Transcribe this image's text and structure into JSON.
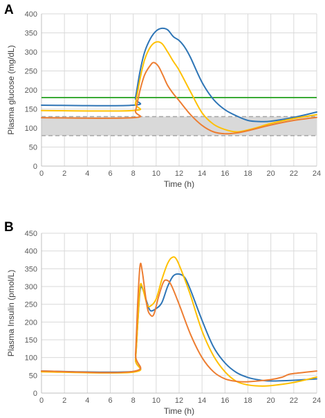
{
  "colors": {
    "blue": "#2e75b6",
    "orange": "#ed7d31",
    "yellow": "#ffc000",
    "green": "#3aaa35",
    "band": "#d9d9d9",
    "band_line": "#a6a6a6",
    "grid": "#d9d9d9"
  },
  "chart_data": [
    {
      "type": "line",
      "panel_label": "A",
      "xlabel": "Time (h)",
      "ylabel": "Plasma glucose (mg/dL)",
      "xlim": [
        0,
        24
      ],
      "ylim": [
        0,
        400
      ],
      "xticks": [
        0,
        2,
        4,
        6,
        8,
        10,
        12,
        14,
        16,
        18,
        20,
        22,
        24
      ],
      "yticks": [
        0,
        50,
        100,
        150,
        200,
        250,
        300,
        350,
        400
      ],
      "grid": true,
      "band": {
        "low": 80,
        "high": 130
      },
      "hlines": [
        {
          "y": 180,
          "color": "green"
        }
      ],
      "series": [
        {
          "color": "blue",
          "points": [
            [
              0,
              160
            ],
            [
              8,
              160
            ],
            [
              8.2,
              180
            ],
            [
              8.6,
              250
            ],
            [
              9,
              300
            ],
            [
              9.5,
              335
            ],
            [
              10,
              355
            ],
            [
              10.5,
              362
            ],
            [
              11,
              358
            ],
            [
              11.5,
              340
            ],
            [
              12,
              330
            ],
            [
              12.5,
              312
            ],
            [
              13,
              285
            ],
            [
              14,
              220
            ],
            [
              15,
              175
            ],
            [
              16,
              148
            ],
            [
              17,
              132
            ],
            [
              18,
              120
            ],
            [
              19,
              117
            ],
            [
              20,
              118
            ],
            [
              22,
              128
            ],
            [
              24,
              142
            ]
          ]
        },
        {
          "color": "yellow",
          "points": [
            [
              0,
              146
            ],
            [
              8,
              146
            ],
            [
              8.2,
              165
            ],
            [
              8.6,
              230
            ],
            [
              9,
              280
            ],
            [
              9.5,
              313
            ],
            [
              10,
              326
            ],
            [
              10.5,
              322
            ],
            [
              11,
              300
            ],
            [
              11.5,
              275
            ],
            [
              12,
              252
            ],
            [
              13,
              195
            ],
            [
              14,
              140
            ],
            [
              15,
              110
            ],
            [
              16,
              96
            ],
            [
              17,
              90
            ],
            [
              18,
              95
            ],
            [
              19,
              103
            ],
            [
              20,
              112
            ],
            [
              22,
              125
            ],
            [
              24,
              135
            ]
          ]
        },
        {
          "color": "orange",
          "points": [
            [
              0,
              127
            ],
            [
              8,
              127
            ],
            [
              8.2,
              145
            ],
            [
              8.6,
              200
            ],
            [
              9,
              240
            ],
            [
              9.5,
              265
            ],
            [
              9.8,
              272
            ],
            [
              10.2,
              262
            ],
            [
              10.6,
              238
            ],
            [
              11,
              212
            ],
            [
              11.5,
              190
            ],
            [
              12,
              172
            ],
            [
              13,
              135
            ],
            [
              14,
              107
            ],
            [
              15,
              90
            ],
            [
              16,
              85
            ],
            [
              17,
              87
            ],
            [
              18,
              93
            ],
            [
              20,
              108
            ],
            [
              22,
              120
            ],
            [
              24,
              128
            ]
          ]
        }
      ]
    },
    {
      "type": "line",
      "panel_label": "B",
      "xlabel": "Time (h)",
      "ylabel": "Plasma Insulin (pmol/L)",
      "xlim": [
        0,
        24
      ],
      "ylim": [
        0,
        450
      ],
      "xticks": [
        0,
        2,
        4,
        6,
        8,
        10,
        12,
        14,
        16,
        18,
        20,
        22,
        24
      ],
      "yticks": [
        0,
        50,
        100,
        150,
        200,
        250,
        300,
        350,
        400,
        450
      ],
      "grid": true,
      "series": [
        {
          "color": "blue",
          "points": [
            [
              0,
              62
            ],
            [
              8,
              61
            ],
            [
              8.2,
              95
            ],
            [
              8.4,
              200
            ],
            [
              8.6,
              290
            ],
            [
              8.8,
              295
            ],
            [
              9.2,
              255
            ],
            [
              9.5,
              232
            ],
            [
              10,
              238
            ],
            [
              10.5,
              255
            ],
            [
              11,
              300
            ],
            [
              11.5,
              330
            ],
            [
              12,
              335
            ],
            [
              12.5,
              325
            ],
            [
              13,
              290
            ],
            [
              14,
              205
            ],
            [
              15,
              130
            ],
            [
              16,
              85
            ],
            [
              17,
              58
            ],
            [
              18,
              44
            ],
            [
              19,
              37
            ],
            [
              20,
              34
            ],
            [
              22,
              36
            ],
            [
              24,
              40
            ]
          ]
        },
        {
          "color": "yellow",
          "points": [
            [
              0,
              60
            ],
            [
              8,
              59
            ],
            [
              8.2,
              95
            ],
            [
              8.4,
              200
            ],
            [
              8.6,
              300
            ],
            [
              8.8,
              298
            ],
            [
              9.2,
              250
            ],
            [
              9.5,
              245
            ],
            [
              10,
              265
            ],
            [
              10.5,
              320
            ],
            [
              11,
              365
            ],
            [
              11.4,
              382
            ],
            [
              11.8,
              375
            ],
            [
              12.5,
              320
            ],
            [
              13,
              275
            ],
            [
              14,
              175
            ],
            [
              15,
              105
            ],
            [
              16,
              60
            ],
            [
              17,
              33
            ],
            [
              18,
              23
            ],
            [
              19,
              20
            ],
            [
              20,
              21
            ],
            [
              22,
              30
            ],
            [
              24,
              45
            ]
          ]
        },
        {
          "color": "orange",
          "points": [
            [
              0,
              62
            ],
            [
              8,
              61
            ],
            [
              8.2,
              110
            ],
            [
              8.4,
              260
            ],
            [
              8.6,
              360
            ],
            [
              8.8,
              340
            ],
            [
              9.2,
              245
            ],
            [
              9.5,
              220
            ],
            [
              9.8,
              222
            ],
            [
              10.2,
              270
            ],
            [
              10.6,
              310
            ],
            [
              10.9,
              318
            ],
            [
              11.3,
              305
            ],
            [
              12,
              250
            ],
            [
              13,
              165
            ],
            [
              14,
              100
            ],
            [
              15,
              60
            ],
            [
              16,
              40
            ],
            [
              17,
              33
            ],
            [
              18,
              32
            ],
            [
              20,
              38
            ],
            [
              21,
              45
            ],
            [
              21.5,
              52
            ],
            [
              22,
              55
            ],
            [
              24,
              62
            ]
          ]
        }
      ]
    }
  ]
}
